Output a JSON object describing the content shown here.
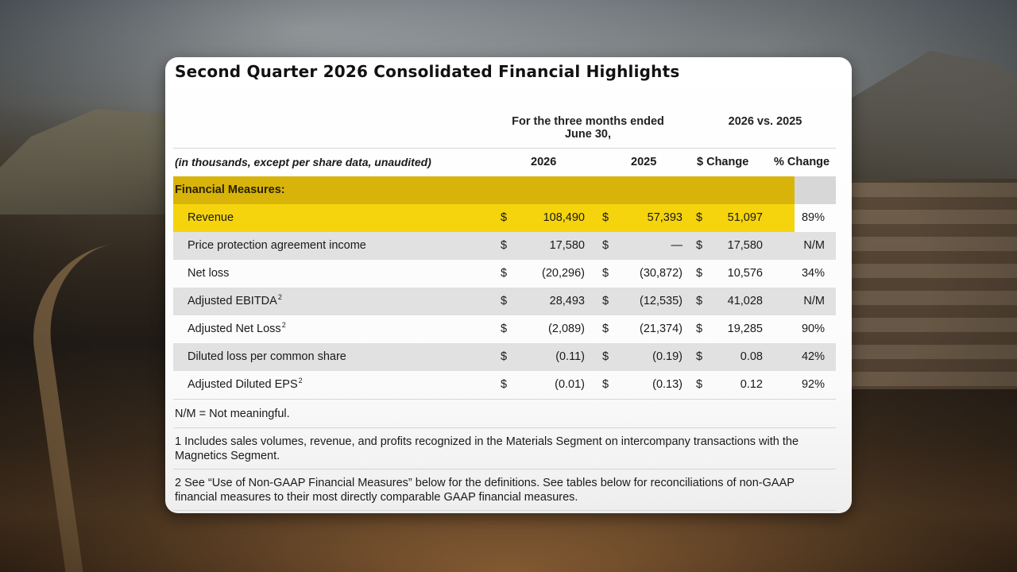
{
  "title": "Second Quarter 2026 Consolidated Financial Highlights",
  "header": {
    "period_line1": "For the three months ended",
    "period_line2": "June 30,",
    "comparison": "2026 vs. 2025",
    "units": "(in thousands, except per share data, unaudited)",
    "col_2026": "2026",
    "col_2025": "2025",
    "col_dollar_change": "$ Change",
    "col_pct_change": "% Change"
  },
  "section_label": "Financial Measures:",
  "currency_symbol": "$",
  "rows": [
    {
      "label": "Revenue",
      "sup": "",
      "v2026": "108,490",
      "v2025": "57,393",
      "change": "51,097",
      "pct": "89%"
    },
    {
      "label": "Price protection agreement income",
      "sup": "",
      "v2026": "17,580",
      "v2025": "—",
      "change": "17,580",
      "pct": "N/M"
    },
    {
      "label": "Net loss",
      "sup": "",
      "v2026": "(20,296)",
      "v2025": "(30,872)",
      "change": "10,576",
      "pct": "34%"
    },
    {
      "label": "Adjusted EBITDA",
      "sup": "2",
      "v2026": "28,493",
      "v2025": "(12,535)",
      "change": "41,028",
      "pct": "N/M"
    },
    {
      "label": "Adjusted Net Loss",
      "sup": "2",
      "v2026": "(2,089)",
      "v2025": "(21,374)",
      "change": "19,285",
      "pct": "90%"
    },
    {
      "label": "Diluted loss per common share",
      "sup": "",
      "v2026": "(0.11)",
      "v2025": "(0.19)",
      "change": "0.08",
      "pct": "42%"
    },
    {
      "label": "Adjusted Diluted EPS",
      "sup": "2",
      "v2026": "(0.01)",
      "v2025": "(0.13)",
      "change": "0.12",
      "pct": "92%"
    }
  ],
  "notes": {
    "nm": "N/M = Not meaningful.",
    "footnote1": "1 Includes sales volumes, revenue, and profits recognized in the Materials Segment on intercompany transactions with the Magnetics Segment.",
    "footnote2": "2 See “Use of Non-GAAP Financial Measures” below for the definitions. See tables below for reconciliations of non-GAAP financial measures to their most directly comparable GAAP financial measures."
  },
  "colors": {
    "section_highlight": "#d8b40a",
    "revenue_highlight": "#f5d40e",
    "stripe": "#e1e1e1"
  }
}
